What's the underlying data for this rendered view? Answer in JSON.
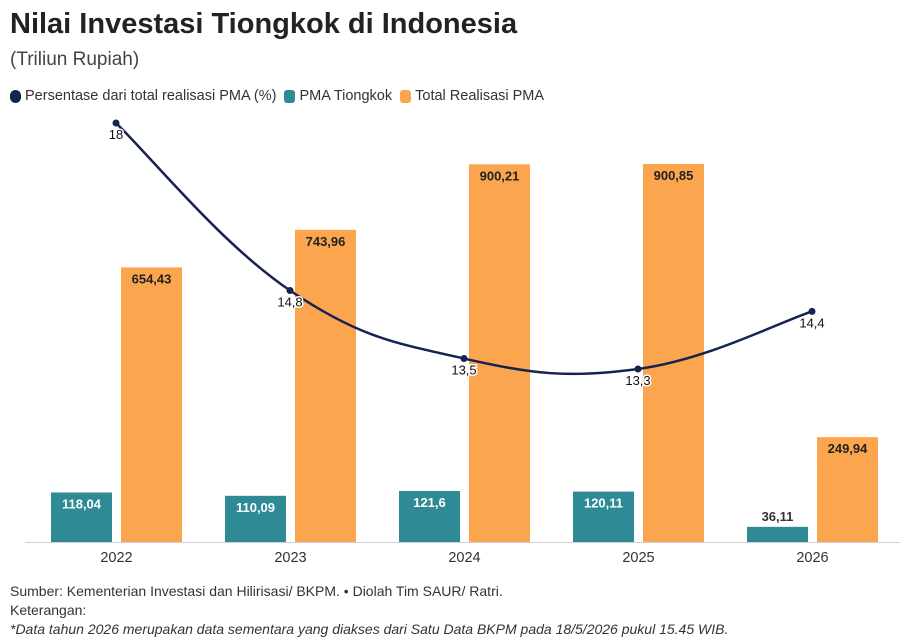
{
  "header": {
    "title": "Nilai Investasi Tiongkok di Indonesia",
    "subtitle": "(Triliun Rupiah)"
  },
  "chart_data": {
    "type": "bar",
    "categories": [
      "2022",
      "2023",
      "2024",
      "2025",
      "2026"
    ],
    "series": [
      {
        "name": "PMA Tiongkok",
        "kind": "bar",
        "color": "#2e8b96",
        "values": [
          118.04,
          110.09,
          121.6,
          120.11,
          36.11
        ],
        "labels": [
          "118,04",
          "110,09",
          "121,6",
          "120,11",
          "36,11"
        ]
      },
      {
        "name": "Total Realisasi PMA",
        "kind": "bar",
        "color": "#fca54f",
        "values": [
          654.43,
          743.96,
          900.21,
          900.85,
          249.94
        ],
        "labels": [
          "654,43",
          "743,96",
          "900,21",
          "900,85",
          "249,94"
        ]
      },
      {
        "name": "Persentase dari total realisasi PMA (%)",
        "kind": "line",
        "color": "#14234f",
        "values": [
          18,
          14.8,
          13.5,
          13.3,
          14.4
        ],
        "labels": [
          "18",
          "14,8",
          "13,5",
          "13,3",
          "14,4"
        ]
      }
    ],
    "ylim": [
      0,
      920
    ],
    "line_ylim": [
      11.5,
      18
    ],
    "legend_position": "top-left",
    "grid": false
  },
  "footer": {
    "source": "Sumber: Kementerian Investasi dan Hilirisasi/ BKPM. • Diolah Tim SAUR/ Ratri.",
    "notes_label": "Keterangan:",
    "note": "*Data tahun 2026 merupakan data sementara yang diakses dari Satu Data BKPM pada 18/5/2026 pukul 15.45 WIB."
  }
}
